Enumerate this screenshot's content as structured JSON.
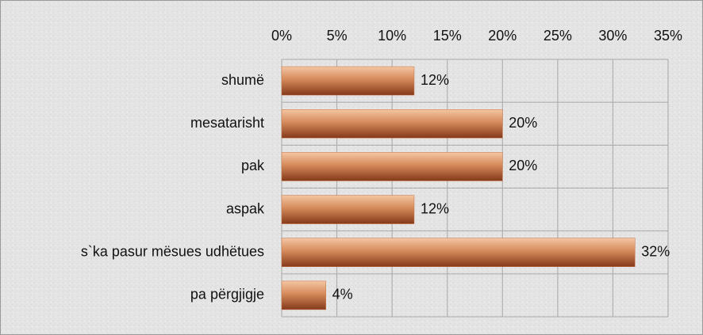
{
  "chart_data": {
    "type": "bar",
    "orientation": "horizontal",
    "categories": [
      "shumë",
      "mesatarisht",
      "pak",
      "aspak",
      "s`ka pasur mësues udhëtues",
      "pa përgjigje"
    ],
    "values": [
      12,
      20,
      20,
      12,
      32,
      4
    ],
    "value_labels": [
      "12%",
      "20%",
      "20%",
      "12%",
      "32%",
      "4%"
    ],
    "color": "#c8703f",
    "xlim": [
      0,
      35
    ],
    "xticks": [
      {
        "value": 0,
        "label": "0%"
      },
      {
        "value": 5,
        "label": "5%"
      },
      {
        "value": 10,
        "label": "10%"
      },
      {
        "value": 15,
        "label": "15%"
      },
      {
        "value": 20,
        "label": "20%"
      },
      {
        "value": 25,
        "label": "25%"
      },
      {
        "value": 30,
        "label": "30%"
      },
      {
        "value": 35,
        "label": "35%"
      }
    ],
    "grid": true
  }
}
